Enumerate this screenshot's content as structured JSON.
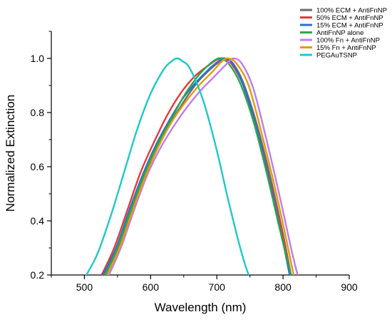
{
  "chart_data": {
    "type": "line",
    "title": "",
    "xlabel": "Wavelength (nm)",
    "ylabel": "Normalized Extinction",
    "xlim": [
      450,
      900
    ],
    "ylim": [
      0.2,
      1.1
    ],
    "x_ticks": [
      500,
      600,
      700,
      800,
      900
    ],
    "y_ticks": [
      0.2,
      0.4,
      0.6,
      0.8,
      1.0
    ],
    "x_tick_labels": [
      "500",
      "600",
      "700",
      "800",
      "900"
    ],
    "y_tick_labels": [
      "0.2",
      "0.4",
      "0.6",
      "0.8",
      "1.0"
    ],
    "grid": false,
    "legend_position": "top-right",
    "series": [
      {
        "name": "100% ECM + AntiFnNP",
        "color": "#6b6b6b",
        "points": [
          [
            531,
            0.2
          ],
          [
            550,
            0.29
          ],
          [
            570,
            0.43
          ],
          [
            590,
            0.56
          ],
          [
            610,
            0.67
          ],
          [
            630,
            0.76
          ],
          [
            650,
            0.84
          ],
          [
            670,
            0.91
          ],
          [
            690,
            0.96
          ],
          [
            705,
            0.99
          ],
          [
            713,
            1.0
          ],
          [
            725,
            0.98
          ],
          [
            740,
            0.91
          ],
          [
            760,
            0.76
          ],
          [
            780,
            0.57
          ],
          [
            800,
            0.35
          ],
          [
            812,
            0.2
          ]
        ]
      },
      {
        "name": "50% ECM + AntiFnNP",
        "color": "#e8383d",
        "points": [
          [
            526,
            0.2
          ],
          [
            545,
            0.3
          ],
          [
            565,
            0.44
          ],
          [
            585,
            0.58
          ],
          [
            605,
            0.69
          ],
          [
            625,
            0.79
          ],
          [
            645,
            0.87
          ],
          [
            665,
            0.93
          ],
          [
            685,
            0.97
          ],
          [
            700,
            0.995
          ],
          [
            710,
            1.0
          ],
          [
            722,
            0.98
          ],
          [
            740,
            0.9
          ],
          [
            760,
            0.74
          ],
          [
            780,
            0.55
          ],
          [
            800,
            0.34
          ],
          [
            812,
            0.2
          ]
        ]
      },
      {
        "name": "15% ECM + AntiFnNP",
        "color": "#2a6fd4",
        "points": [
          [
            528,
            0.2
          ],
          [
            548,
            0.3
          ],
          [
            568,
            0.44
          ],
          [
            588,
            0.57
          ],
          [
            608,
            0.68
          ],
          [
            628,
            0.77
          ],
          [
            648,
            0.85
          ],
          [
            668,
            0.91
          ],
          [
            688,
            0.96
          ],
          [
            703,
            0.99
          ],
          [
            712,
            1.0
          ],
          [
            724,
            0.98
          ],
          [
            740,
            0.9
          ],
          [
            760,
            0.74
          ],
          [
            780,
            0.54
          ],
          [
            800,
            0.32
          ],
          [
            810,
            0.2
          ]
        ]
      },
      {
        "name": "AntiFnNP alone",
        "color": "#2aa84a",
        "points": [
          [
            531,
            0.2
          ],
          [
            550,
            0.3
          ],
          [
            570,
            0.44
          ],
          [
            590,
            0.57
          ],
          [
            610,
            0.68
          ],
          [
            630,
            0.77
          ],
          [
            650,
            0.86
          ],
          [
            670,
            0.93
          ],
          [
            685,
            0.97
          ],
          [
            698,
            0.995
          ],
          [
            706,
            1.0
          ],
          [
            718,
            0.98
          ],
          [
            735,
            0.91
          ],
          [
            755,
            0.77
          ],
          [
            775,
            0.58
          ],
          [
            795,
            0.37
          ],
          [
            812,
            0.2
          ]
        ]
      },
      {
        "name": "100% Fn + AntiFnNP",
        "color": "#c07ee8",
        "points": [
          [
            537,
            0.2
          ],
          [
            555,
            0.3
          ],
          [
            575,
            0.44
          ],
          [
            595,
            0.57
          ],
          [
            615,
            0.67
          ],
          [
            635,
            0.75
          ],
          [
            655,
            0.82
          ],
          [
            675,
            0.88
          ],
          [
            695,
            0.93
          ],
          [
            715,
            0.98
          ],
          [
            725,
            1.0
          ],
          [
            738,
            0.98
          ],
          [
            755,
            0.89
          ],
          [
            775,
            0.7
          ],
          [
            795,
            0.49
          ],
          [
            812,
            0.3
          ],
          [
            822,
            0.2
          ]
        ]
      },
      {
        "name": "15% Fn + AntiFnNP",
        "color": "#e39a12",
        "points": [
          [
            534,
            0.2
          ],
          [
            553,
            0.3
          ],
          [
            573,
            0.44
          ],
          [
            593,
            0.57
          ],
          [
            613,
            0.68
          ],
          [
            633,
            0.77
          ],
          [
            653,
            0.84
          ],
          [
            673,
            0.9
          ],
          [
            693,
            0.95
          ],
          [
            708,
            0.99
          ],
          [
            718,
            1.0
          ],
          [
            730,
            0.98
          ],
          [
            748,
            0.9
          ],
          [
            768,
            0.72
          ],
          [
            788,
            0.52
          ],
          [
            805,
            0.33
          ],
          [
            816,
            0.2
          ]
        ]
      },
      {
        "name": "PEGAuTSNP",
        "color": "#1fc8c8",
        "points": [
          [
            503,
            0.2
          ],
          [
            520,
            0.28
          ],
          [
            540,
            0.42
          ],
          [
            560,
            0.58
          ],
          [
            580,
            0.74
          ],
          [
            600,
            0.87
          ],
          [
            620,
            0.96
          ],
          [
            632,
            0.99
          ],
          [
            640,
            1.0
          ],
          [
            648,
            0.99
          ],
          [
            660,
            0.96
          ],
          [
            680,
            0.84
          ],
          [
            700,
            0.66
          ],
          [
            715,
            0.5
          ],
          [
            730,
            0.35
          ],
          [
            740,
            0.26
          ],
          [
            748,
            0.2
          ]
        ]
      }
    ]
  }
}
